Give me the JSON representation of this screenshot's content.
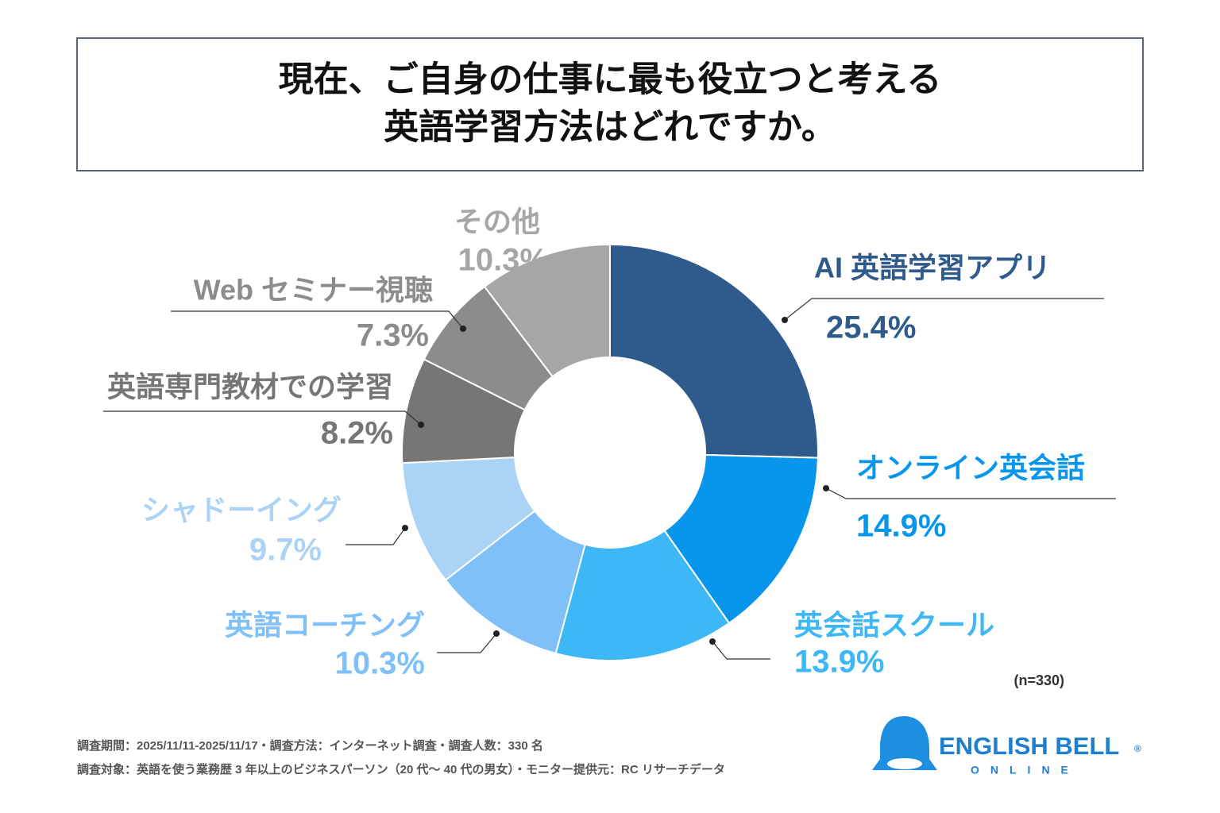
{
  "chart_data": {
    "type": "donut",
    "title": [
      "現在、ご自身の仕事に最も役立つと考える",
      "英語学習方法はどれですか。"
    ],
    "categories": [
      "AI 英語学習アプリ",
      "オンライン英会話",
      "英会話スクール",
      "英語コーチング",
      "シャドーイング",
      "英語専門教材での学習",
      "Web セミナー視聴",
      "その他"
    ],
    "values": [
      25.4,
      14.9,
      13.9,
      10.3,
      9.7,
      8.2,
      7.3,
      10.3
    ],
    "value_labels": [
      "25.4%",
      "14.9%",
      "13.9%",
      "10.3%",
      "9.7%",
      "8.2%",
      "7.3%",
      "10.3%"
    ],
    "colors": [
      "#2e5a8c",
      "#0896ec",
      "#3db7f5",
      "#80c0f8",
      "#abd3f5",
      "#767676",
      "#8c8c8c",
      "#a6a6a6"
    ],
    "note": "(n=330)"
  },
  "footer": [
    "調査期間：2025/11/11-2025/11/17・調査方法：インターネット調査・調査人数：330 名",
    "調査対象：英語を使う業務歴 3 年以上のビジネスパーソン（20 代〜 40 代の男女）・モニター提供元：RC リサーチデータ"
  ],
  "logo": {
    "name": "ENGLISH BELL",
    "mark": "®",
    "sub": "ONLINE"
  }
}
